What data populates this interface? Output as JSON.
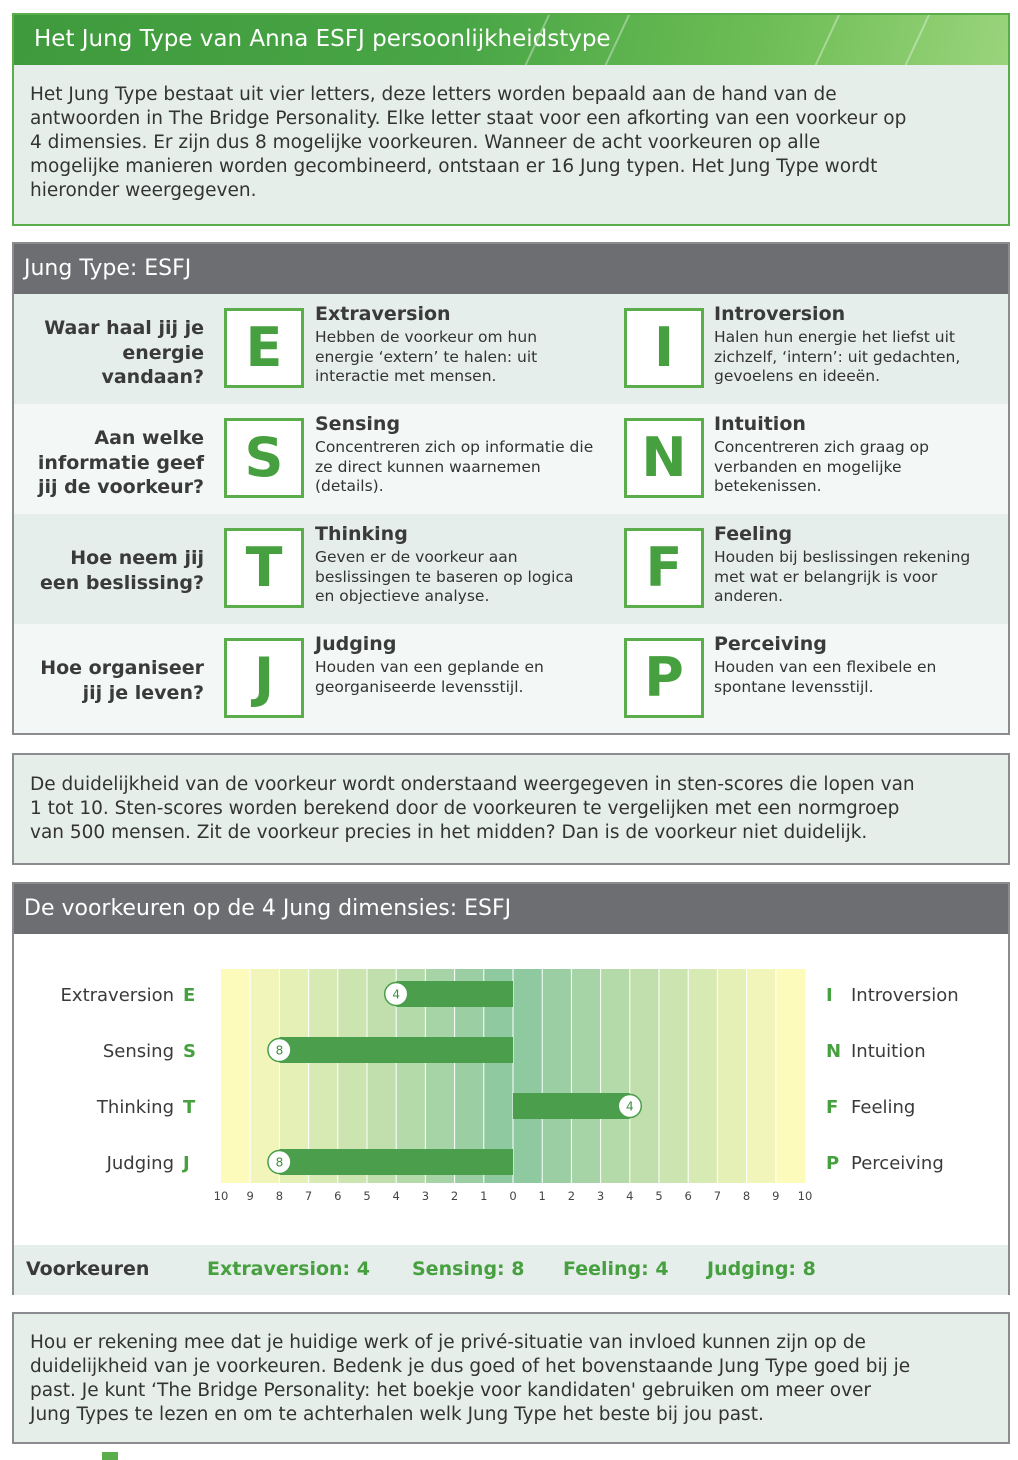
{
  "intro": {
    "title": "Het Jung Type van Anna ESFJ persoonlijkheidstype",
    "lines": [
      "Het Jung Type bestaat uit vier letters, deze letters worden bepaald aan de hand van de",
      "antwoorden in The Bridge Personality. Elke letter staat voor een afkorting van een voorkeur op",
      "4 dimensies. Er zijn dus 8 mogelijke voorkeuren. Wanneer de acht voorkeuren op alle",
      "mogelijke manieren worden gecombineerd, ontstaan er 16 Jung typen. Het Jung Type wordt",
      "hieronder weergegeven."
    ]
  },
  "type_card": {
    "title": "Jung Type: ESFJ",
    "rows": [
      {
        "question": [
          "Waar haal jij je",
          "energie",
          "vandaan?"
        ],
        "left": {
          "letter": "E",
          "name": "Extraversion",
          "desc": [
            "Hebben de voorkeur om hun",
            "energie ‘extern’ te halen: uit",
            "interactie met mensen."
          ]
        },
        "right": {
          "letter": "I",
          "name": "Introversion",
          "desc": [
            "Halen hun energie het liefst uit",
            "zichzelf, ‘intern’: uit gedachten,",
            "gevoelens en ideeën."
          ]
        }
      },
      {
        "question": [
          "Aan welke",
          "informatie geef",
          "jij de voorkeur?"
        ],
        "left": {
          "letter": "S",
          "name": "Sensing",
          "desc": [
            "Concentreren zich op informatie die",
            "ze direct kunnen waarnemen",
            "(details)."
          ]
        },
        "right": {
          "letter": "N",
          "name": "Intuition",
          "desc": [
            "Concentreren zich graag op",
            "verbanden en mogelijke",
            "betekenissen."
          ]
        }
      },
      {
        "question": [
          "Hoe neem jij",
          "een beslissing?"
        ],
        "left": {
          "letter": "T",
          "name": "Thinking",
          "desc": [
            "Geven er de voorkeur aan",
            "beslissingen te baseren op logica",
            "en objectieve analyse."
          ]
        },
        "right": {
          "letter": "F",
          "name": "Feeling",
          "desc": [
            "Houden bij beslissingen rekening",
            "met wat er belangrijk is voor",
            "anderen."
          ]
        }
      },
      {
        "question": [
          "Hoe organiseer",
          "jij je leven?"
        ],
        "left": {
          "letter": "J",
          "name": "Judging",
          "desc": [
            "Houden van een geplande en",
            "georganiseerde levensstijl."
          ]
        },
        "right": {
          "letter": "P",
          "name": "Perceiving",
          "desc": [
            "Houden van een flexibele en",
            "spontane levensstijl."
          ]
        }
      }
    ]
  },
  "sten": {
    "lines": [
      "De duidelijkheid van de voorkeur wordt onderstaand weergegeven in sten-scores die lopen van",
      "1 tot 10. Sten-scores worden berekend door de voorkeuren te vergelijken met een normgroep",
      "van 500 mensen. Zit de voorkeur precies in het midden? Dan is de voorkeur niet duidelijk."
    ]
  },
  "chart_card": {
    "title": "De voorkeuren op de 4 Jung dimensies: ESFJ",
    "preferences_label": "Voorkeuren",
    "preferences": [
      "Extraversion: 4",
      "Sensing: 8",
      "Feeling: 4",
      "Judging: 8"
    ]
  },
  "chart_data": {
    "type": "bar",
    "orientation": "horizontal-diverging",
    "xlim": [
      -10,
      10
    ],
    "tick_labels": [
      "10",
      "9",
      "8",
      "7",
      "6",
      "5",
      "4",
      "3",
      "2",
      "1",
      "0",
      "1",
      "2",
      "3",
      "4",
      "5",
      "6",
      "7",
      "8",
      "9",
      "10"
    ],
    "rows": [
      {
        "left_label": "Extraversion",
        "left_letter": "E",
        "right_letter": "I",
        "right_label": "Introversion",
        "side": "left",
        "value": 4
      },
      {
        "left_label": "Sensing",
        "left_letter": "S",
        "right_letter": "N",
        "right_label": "Intuition",
        "side": "left",
        "value": 8
      },
      {
        "left_label": "Thinking",
        "left_letter": "T",
        "right_letter": "F",
        "right_label": "Feeling",
        "side": "right",
        "value": 4
      },
      {
        "left_label": "Judging",
        "left_letter": "J",
        "right_letter": "P",
        "right_label": "Perceiving",
        "side": "left",
        "value": 8
      }
    ],
    "colors": {
      "bar": "#4a9e4c",
      "letter": "#47a03f",
      "band_outer": "#fdfbbc",
      "band_inner": "#8fc9a0"
    }
  },
  "closing": {
    "lines": [
      "Hou er rekening mee dat je huidige werk of je privé-situatie van invloed kunnen zijn op de",
      "duidelijkheid van je voorkeuren. Bedenk je dus goed of het bovenstaande Jung Type goed bij je",
      "past. Je kunt ‘The Bridge Personality: het boekje voor kandidaten' gebruiken om meer over",
      "Jung Types te lezen en om te achterhalen welk Jung Type het beste bij jou past."
    ]
  }
}
